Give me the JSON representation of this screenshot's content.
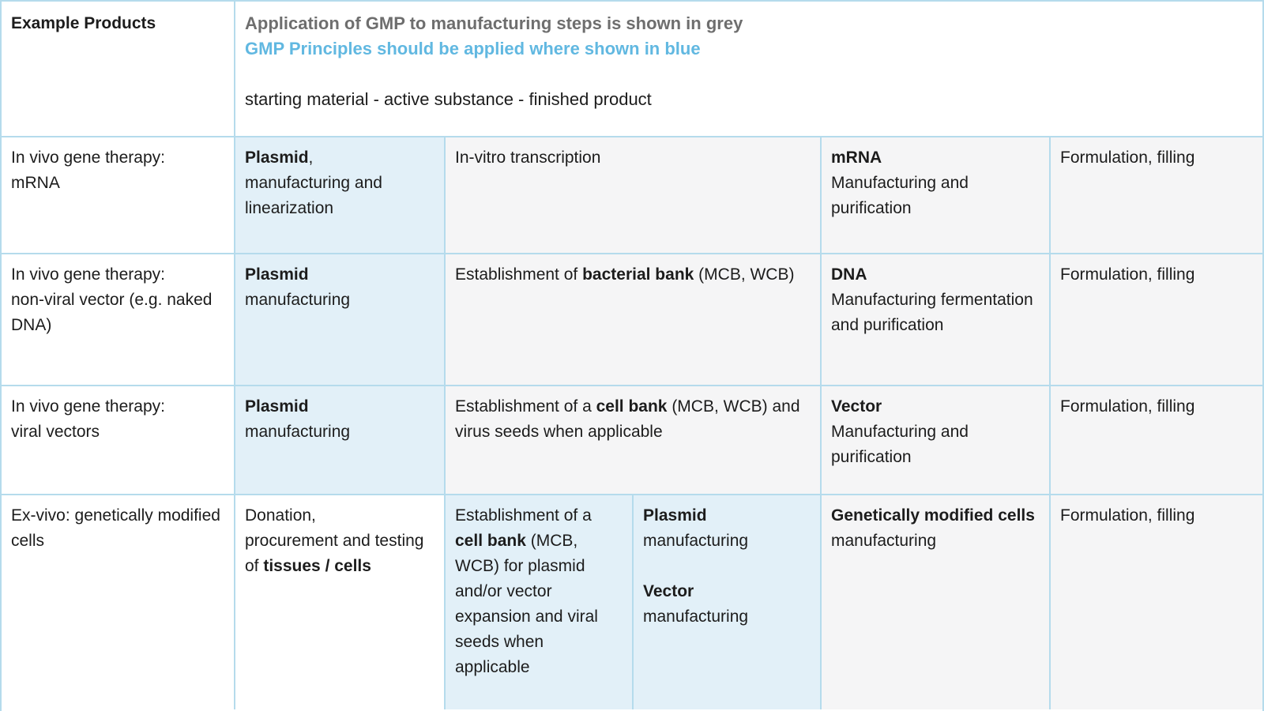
{
  "colors": {
    "border": "#b5dbec",
    "bg_blue": "#e2f0f8",
    "bg_grey": "#f5f5f6",
    "bg_white": "#ffffff",
    "header_grey_text": "#6e6e6e",
    "header_blue_text": "#61b8e1",
    "body_text": "#1c1c1c"
  },
  "header": {
    "example_products": "Example Products",
    "legend_grey": "Application of GMP to manufacturing steps is shown in grey",
    "legend_blue": "GMP Principles should be applied where shown in blue",
    "flow": "starting material - active substance - finished product"
  },
  "rows": [
    {
      "cells": [
        {
          "col": "products",
          "bg": "white",
          "runs": [
            {
              "t": "In vivo gene therapy:\nmRNA",
              "b": false
            }
          ]
        },
        {
          "col": "s1",
          "bg": "blue",
          "runs": [
            {
              "t": "Plasmid",
              "b": true
            },
            {
              "t": ",\nmanufacturing and linearization",
              "b": false
            }
          ]
        },
        {
          "col": "s2",
          "bg": "grey",
          "runs": [
            {
              "t": "In-vitro transcription",
              "b": false
            }
          ]
        },
        {
          "col": "s3",
          "bg": "grey",
          "runs": [
            {
              "t": "mRNA",
              "b": true
            },
            {
              "t": "\nManufacturing and purification",
              "b": false
            }
          ]
        },
        {
          "col": "s4",
          "bg": "grey",
          "runs": [
            {
              "t": "Formulation, filling",
              "b": false
            }
          ]
        }
      ]
    },
    {
      "cells": [
        {
          "col": "products",
          "bg": "white",
          "runs": [
            {
              "t": "In vivo gene therapy:\nnon-viral vector (e.g. naked DNA)",
              "b": false
            }
          ]
        },
        {
          "col": "s1",
          "bg": "blue",
          "runs": [
            {
              "t": "Plasmid",
              "b": true
            },
            {
              "t": "\nmanufacturing",
              "b": false
            }
          ]
        },
        {
          "col": "s2",
          "bg": "grey",
          "runs": [
            {
              "t": "Establishment of ",
              "b": false
            },
            {
              "t": "bacterial bank",
              "b": true
            },
            {
              "t": " (MCB, WCB)",
              "b": false
            }
          ]
        },
        {
          "col": "s3",
          "bg": "grey",
          "runs": [
            {
              "t": "DNA",
              "b": true
            },
            {
              "t": "\nManufacturing fermentation and purification",
              "b": false
            }
          ]
        },
        {
          "col": "s4",
          "bg": "grey",
          "runs": [
            {
              "t": "Formulation, filling",
              "b": false
            }
          ]
        }
      ]
    },
    {
      "cells": [
        {
          "col": "products",
          "bg": "white",
          "runs": [
            {
              "t": "In vivo gene therapy:\nviral vectors",
              "b": false
            }
          ]
        },
        {
          "col": "s1",
          "bg": "blue",
          "runs": [
            {
              "t": "Plasmid",
              "b": true
            },
            {
              "t": "\nmanufacturing",
              "b": false
            }
          ]
        },
        {
          "col": "s2",
          "bg": "grey",
          "runs": [
            {
              "t": "Establishment of a ",
              "b": false
            },
            {
              "t": "cell bank",
              "b": true
            },
            {
              "t": " (MCB, WCB) and virus seeds when applicable",
              "b": false
            }
          ]
        },
        {
          "col": "s3",
          "bg": "grey",
          "runs": [
            {
              "t": "Vector",
              "b": true
            },
            {
              "t": "\nManufacturing and purification",
              "b": false
            }
          ]
        },
        {
          "col": "s4",
          "bg": "grey",
          "runs": [
            {
              "t": "Formulation, filling",
              "b": false
            }
          ]
        }
      ]
    },
    {
      "cells": [
        {
          "col": "products",
          "bg": "white",
          "runs": [
            {
              "t": "Ex-vivo: genetically modified cells",
              "b": false
            }
          ]
        },
        {
          "col": "s1",
          "bg": "white",
          "runs": [
            {
              "t": "Donation,\nprocurement and testing of ",
              "b": false
            },
            {
              "t": "tissues / cells",
              "b": true
            }
          ]
        },
        {
          "col": "s2a",
          "bg": "blue",
          "runs": [
            {
              "t": "Establishment of a ",
              "b": false
            },
            {
              "t": "cell bank",
              "b": true
            },
            {
              "t": " (MCB, WCB) for plasmid and/or vector expansion and viral seeds when applicable",
              "b": false
            }
          ]
        },
        {
          "col": "s2b",
          "bg": "blue",
          "runs": [
            {
              "t": "Plasmid",
              "b": true
            },
            {
              "t": "\nmanufacturing\n\n",
              "b": false
            },
            {
              "t": "Vector",
              "b": true
            },
            {
              "t": "\nmanufacturing",
              "b": false
            }
          ]
        },
        {
          "col": "s3",
          "bg": "grey",
          "runs": [
            {
              "t": "Genetically modified cells",
              "b": true
            },
            {
              "t": "\nmanufacturing",
              "b": false
            }
          ]
        },
        {
          "col": "s4",
          "bg": "grey",
          "runs": [
            {
              "t": "Formulation, filling",
              "b": false
            }
          ]
        }
      ]
    }
  ]
}
